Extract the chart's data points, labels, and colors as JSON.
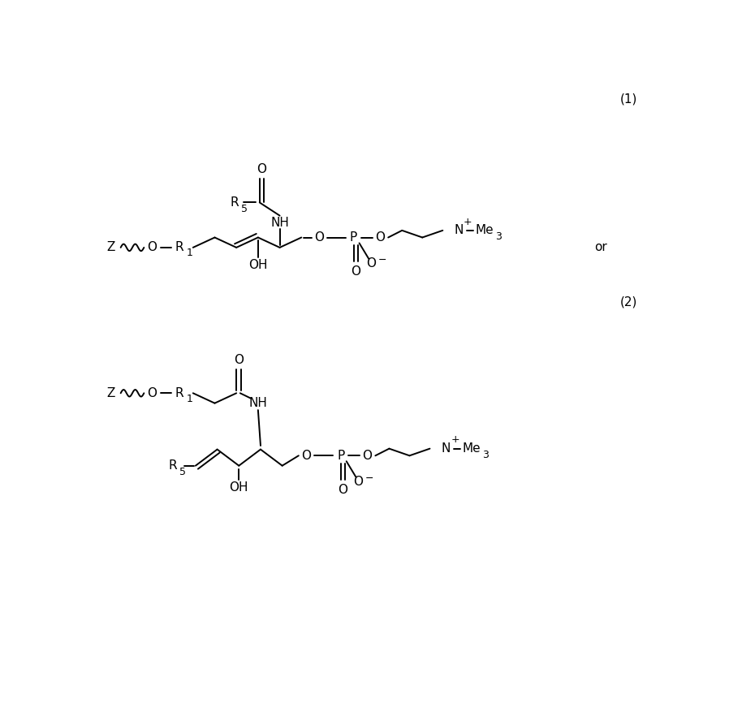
{
  "background_color": "#ffffff",
  "fig_width": 8.98,
  "fig_height": 8.66,
  "line_color": "#000000",
  "line_width": 1.4,
  "font_size": 11,
  "label1": "(1)",
  "label2": "(2)",
  "or_text": "or"
}
